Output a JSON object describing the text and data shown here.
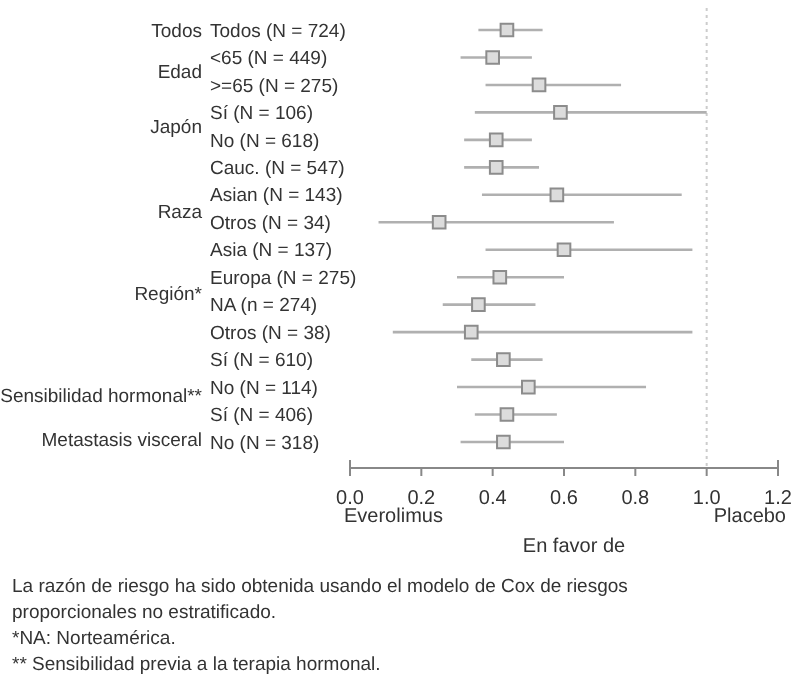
{
  "chart_data": {
    "type": "scatter",
    "orientation": "horizontal",
    "marker": "square",
    "color": "#8c8c8c",
    "categories": [
      "Todos (N = 724)",
      "<65 (N = 449)",
      ">=65 (N = 275)",
      "Sí (N = 106)",
      "No (N = 618)",
      "Cauc. (N = 547)",
      "Asian (N = 143)",
      "Otros (N = 34)",
      "Asia (N = 137)",
      "Europa (N = 275)",
      "NA (n = 274)",
      "Otros (N = 38)",
      "Sí (N = 610)",
      "No (N = 114)",
      "Sí (N = 406)",
      "No (N = 318)"
    ],
    "values": [
      0.44,
      0.4,
      0.53,
      0.59,
      0.41,
      0.41,
      0.58,
      0.25,
      0.6,
      0.42,
      0.36,
      0.34,
      0.43,
      0.5,
      0.44,
      0.43
    ],
    "errors": [
      [
        0.36,
        0.54
      ],
      [
        0.31,
        0.51
      ],
      [
        0.38,
        0.76
      ],
      [
        0.35,
        1.0
      ],
      [
        0.32,
        0.51
      ],
      [
        0.32,
        0.53
      ],
      [
        0.37,
        0.93
      ],
      [
        0.08,
        0.74
      ],
      [
        0.38,
        0.96
      ],
      [
        0.3,
        0.6
      ],
      [
        0.26,
        0.52
      ],
      [
        0.12,
        0.96
      ],
      [
        0.34,
        0.54
      ],
      [
        0.3,
        0.83
      ],
      [
        0.35,
        0.58
      ],
      [
        0.31,
        0.6
      ]
    ],
    "xlim": [
      0,
      1.2
    ],
    "xticks": [
      {
        "value": 0,
        "label": "0.0"
      },
      0.2,
      0.4,
      0.6,
      0.8,
      {
        "value": 1,
        "label": "1.0"
      },
      1.2
    ],
    "xlabel": "En favor de",
    "ref_lines": [
      {
        "axis": "x",
        "value": 1,
        "color": "#cccccc",
        "line_style": "dotted"
      }
    ],
    "annotations": [
      "Todos",
      "Edad",
      "Japón",
      "Raza",
      "Región*",
      "Sensibilidad hormonal**",
      "Metastasis visceral",
      "Everolimus",
      "Placebo",
      "La razón de riesgo ha sido obtenida usando el modelo de Cox de riesgos proporcionales no estratificado.",
      "*NA: Norteamérica.",
      "** Sensibilidad previa a la terapia hormonal."
    ]
  }
}
